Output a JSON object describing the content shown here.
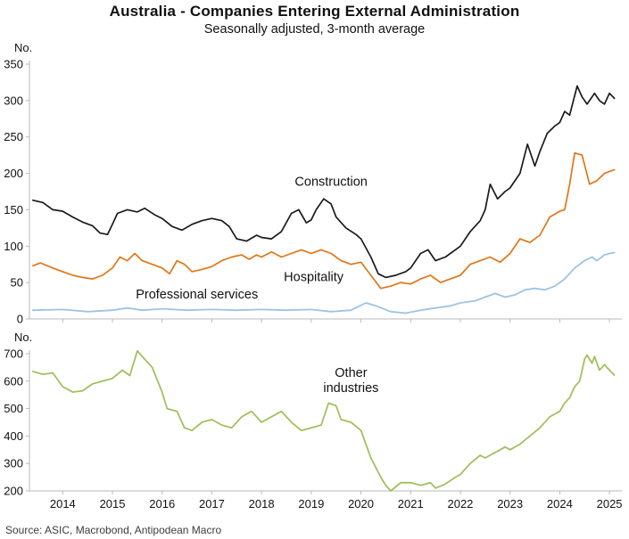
{
  "title": "Australia - Companies Entering External Administration",
  "subtitle": "Seasonally adjusted, 3-month average",
  "source": "Source: ASIC, Macrobond, Antipodean Macro",
  "chart_data": {
    "type": "line",
    "title": "Australia - Companies Entering External Administration",
    "subtitle": "Seasonally adjusted, 3-month average",
    "x_range": [
      2013.33,
      2025.25
    ],
    "x_ticks": [
      2014,
      2015,
      2016,
      2017,
      2018,
      2019,
      2020,
      2021,
      2022,
      2023,
      2024,
      2025
    ],
    "panels": [
      {
        "name": "top",
        "unit_label": "No.",
        "ylim": [
          0,
          350
        ],
        "yticks": [
          0,
          50,
          100,
          150,
          200,
          250,
          300,
          350
        ],
        "show_xlabels": false,
        "series": [
          "construction",
          "hospitality",
          "professional_services"
        ],
        "annotations": [
          {
            "lines": [
              "Construction"
            ],
            "x": 2019.4,
            "y": 183,
            "color": "#1a1a1a"
          },
          {
            "lines": [
              "Hospitality"
            ],
            "x": 2019.05,
            "y": 52,
            "color": "#e07617"
          },
          {
            "lines": [
              "Professional services"
            ],
            "x": 2016.7,
            "y": 28,
            "color": "#9dc3e6"
          }
        ]
      },
      {
        "name": "bottom",
        "unit_label": "No.",
        "ylim": [
          200,
          700
        ],
        "yticks": [
          200,
          300,
          400,
          500,
          600,
          700
        ],
        "show_xlabels": true,
        "series": [
          "other_industries"
        ],
        "annotations": [
          {
            "lines": [
              "Other",
              "industries"
            ],
            "x": 2019.8,
            "y": 615,
            "color": "#a3bf5f"
          }
        ]
      }
    ],
    "series": {
      "construction": {
        "label": "Construction",
        "color": "#1a1a1a",
        "width": 1.7,
        "points": [
          [
            2013.4,
            163
          ],
          [
            2013.6,
            160
          ],
          [
            2013.8,
            150
          ],
          [
            2014.0,
            148
          ],
          [
            2014.2,
            140
          ],
          [
            2014.4,
            133
          ],
          [
            2014.6,
            128
          ],
          [
            2014.75,
            118
          ],
          [
            2014.9,
            116
          ],
          [
            2015.0,
            130
          ],
          [
            2015.1,
            145
          ],
          [
            2015.3,
            150
          ],
          [
            2015.5,
            147
          ],
          [
            2015.65,
            152
          ],
          [
            2015.85,
            143
          ],
          [
            2016.0,
            138
          ],
          [
            2016.2,
            127
          ],
          [
            2016.4,
            122
          ],
          [
            2016.6,
            130
          ],
          [
            2016.8,
            135
          ],
          [
            2017.0,
            138
          ],
          [
            2017.2,
            135
          ],
          [
            2017.35,
            127
          ],
          [
            2017.5,
            110
          ],
          [
            2017.7,
            107
          ],
          [
            2017.9,
            115
          ],
          [
            2018.0,
            112
          ],
          [
            2018.2,
            110
          ],
          [
            2018.4,
            120
          ],
          [
            2018.6,
            145
          ],
          [
            2018.75,
            150
          ],
          [
            2018.9,
            132
          ],
          [
            2019.0,
            136
          ],
          [
            2019.1,
            150
          ],
          [
            2019.25,
            165
          ],
          [
            2019.4,
            158
          ],
          [
            2019.5,
            140
          ],
          [
            2019.7,
            125
          ],
          [
            2019.9,
            116
          ],
          [
            2020.0,
            110
          ],
          [
            2020.2,
            85
          ],
          [
            2020.35,
            62
          ],
          [
            2020.5,
            57
          ],
          [
            2020.7,
            60
          ],
          [
            2020.9,
            65
          ],
          [
            2021.0,
            70
          ],
          [
            2021.2,
            90
          ],
          [
            2021.35,
            95
          ],
          [
            2021.5,
            80
          ],
          [
            2021.7,
            85
          ],
          [
            2021.9,
            95
          ],
          [
            2022.0,
            100
          ],
          [
            2022.2,
            120
          ],
          [
            2022.4,
            135
          ],
          [
            2022.5,
            150
          ],
          [
            2022.6,
            185
          ],
          [
            2022.75,
            165
          ],
          [
            2022.9,
            175
          ],
          [
            2023.0,
            180
          ],
          [
            2023.2,
            200
          ],
          [
            2023.35,
            240
          ],
          [
            2023.5,
            210
          ],
          [
            2023.6,
            230
          ],
          [
            2023.75,
            255
          ],
          [
            2023.9,
            265
          ],
          [
            2024.0,
            270
          ],
          [
            2024.1,
            285
          ],
          [
            2024.2,
            280
          ],
          [
            2024.35,
            320
          ],
          [
            2024.45,
            305
          ],
          [
            2024.55,
            295
          ],
          [
            2024.7,
            310
          ],
          [
            2024.8,
            300
          ],
          [
            2024.9,
            295
          ],
          [
            2025.0,
            310
          ],
          [
            2025.1,
            303
          ]
        ]
      },
      "hospitality": {
        "label": "Hospitality",
        "color": "#e07617",
        "width": 1.7,
        "points": [
          [
            2013.4,
            73
          ],
          [
            2013.55,
            77
          ],
          [
            2013.8,
            70
          ],
          [
            2014.0,
            65
          ],
          [
            2014.2,
            60
          ],
          [
            2014.4,
            57
          ],
          [
            2014.6,
            55
          ],
          [
            2014.8,
            60
          ],
          [
            2015.0,
            70
          ],
          [
            2015.15,
            85
          ],
          [
            2015.3,
            80
          ],
          [
            2015.45,
            90
          ],
          [
            2015.6,
            80
          ],
          [
            2015.8,
            75
          ],
          [
            2016.0,
            70
          ],
          [
            2016.15,
            62
          ],
          [
            2016.3,
            80
          ],
          [
            2016.45,
            75
          ],
          [
            2016.6,
            65
          ],
          [
            2016.8,
            68
          ],
          [
            2017.0,
            72
          ],
          [
            2017.2,
            80
          ],
          [
            2017.4,
            85
          ],
          [
            2017.6,
            88
          ],
          [
            2017.75,
            82
          ],
          [
            2017.9,
            88
          ],
          [
            2018.0,
            85
          ],
          [
            2018.2,
            92
          ],
          [
            2018.4,
            85
          ],
          [
            2018.6,
            90
          ],
          [
            2018.8,
            95
          ],
          [
            2019.0,
            90
          ],
          [
            2019.2,
            95
          ],
          [
            2019.4,
            90
          ],
          [
            2019.6,
            80
          ],
          [
            2019.8,
            75
          ],
          [
            2020.0,
            78
          ],
          [
            2020.2,
            60
          ],
          [
            2020.4,
            42
          ],
          [
            2020.6,
            45
          ],
          [
            2020.8,
            50
          ],
          [
            2021.0,
            48
          ],
          [
            2021.2,
            55
          ],
          [
            2021.4,
            60
          ],
          [
            2021.6,
            50
          ],
          [
            2021.8,
            55
          ],
          [
            2022.0,
            60
          ],
          [
            2022.2,
            75
          ],
          [
            2022.4,
            80
          ],
          [
            2022.6,
            85
          ],
          [
            2022.8,
            78
          ],
          [
            2023.0,
            90
          ],
          [
            2023.2,
            110
          ],
          [
            2023.4,
            105
          ],
          [
            2023.6,
            115
          ],
          [
            2023.8,
            140
          ],
          [
            2024.0,
            148
          ],
          [
            2024.1,
            150
          ],
          [
            2024.2,
            185
          ],
          [
            2024.3,
            228
          ],
          [
            2024.45,
            225
          ],
          [
            2024.6,
            185
          ],
          [
            2024.75,
            190
          ],
          [
            2024.9,
            200
          ],
          [
            2025.1,
            205
          ]
        ]
      },
      "professional_services": {
        "label": "Professional services",
        "color": "#9dc3e6",
        "width": 1.8,
        "points": [
          [
            2013.4,
            12
          ],
          [
            2014.0,
            13
          ],
          [
            2014.5,
            10
          ],
          [
            2015.0,
            12
          ],
          [
            2015.3,
            15
          ],
          [
            2015.6,
            12
          ],
          [
            2016.0,
            14
          ],
          [
            2016.5,
            12
          ],
          [
            2017.0,
            13
          ],
          [
            2017.5,
            12
          ],
          [
            2018.0,
            13
          ],
          [
            2018.5,
            12
          ],
          [
            2019.0,
            13
          ],
          [
            2019.4,
            10
          ],
          [
            2019.8,
            12
          ],
          [
            2020.1,
            22
          ],
          [
            2020.3,
            18
          ],
          [
            2020.6,
            10
          ],
          [
            2020.9,
            8
          ],
          [
            2021.2,
            12
          ],
          [
            2021.5,
            15
          ],
          [
            2021.8,
            18
          ],
          [
            2022.0,
            22
          ],
          [
            2022.3,
            25
          ],
          [
            2022.5,
            30
          ],
          [
            2022.7,
            35
          ],
          [
            2022.9,
            30
          ],
          [
            2023.1,
            33
          ],
          [
            2023.3,
            40
          ],
          [
            2023.5,
            42
          ],
          [
            2023.7,
            40
          ],
          [
            2023.9,
            45
          ],
          [
            2024.1,
            55
          ],
          [
            2024.3,
            70
          ],
          [
            2024.5,
            80
          ],
          [
            2024.65,
            85
          ],
          [
            2024.75,
            80
          ],
          [
            2024.9,
            88
          ],
          [
            2025.0,
            90
          ],
          [
            2025.1,
            91
          ]
        ]
      },
      "other_industries": {
        "label": "Other industries",
        "color": "#a3bf5f",
        "width": 1.8,
        "points": [
          [
            2013.4,
            635
          ],
          [
            2013.6,
            625
          ],
          [
            2013.8,
            630
          ],
          [
            2014.0,
            580
          ],
          [
            2014.2,
            560
          ],
          [
            2014.4,
            565
          ],
          [
            2014.6,
            590
          ],
          [
            2014.8,
            600
          ],
          [
            2015.0,
            610
          ],
          [
            2015.2,
            640
          ],
          [
            2015.35,
            620
          ],
          [
            2015.5,
            710
          ],
          [
            2015.65,
            680
          ],
          [
            2015.8,
            650
          ],
          [
            2016.0,
            560
          ],
          [
            2016.1,
            500
          ],
          [
            2016.3,
            490
          ],
          [
            2016.45,
            430
          ],
          [
            2016.6,
            420
          ],
          [
            2016.8,
            450
          ],
          [
            2017.0,
            460
          ],
          [
            2017.2,
            440
          ],
          [
            2017.4,
            430
          ],
          [
            2017.6,
            470
          ],
          [
            2017.8,
            490
          ],
          [
            2018.0,
            450
          ],
          [
            2018.2,
            470
          ],
          [
            2018.4,
            490
          ],
          [
            2018.6,
            450
          ],
          [
            2018.8,
            420
          ],
          [
            2019.0,
            430
          ],
          [
            2019.2,
            440
          ],
          [
            2019.35,
            520
          ],
          [
            2019.5,
            510
          ],
          [
            2019.6,
            460
          ],
          [
            2019.8,
            450
          ],
          [
            2020.0,
            420
          ],
          [
            2020.2,
            320
          ],
          [
            2020.4,
            250
          ],
          [
            2020.5,
            220
          ],
          [
            2020.6,
            200
          ],
          [
            2020.8,
            230
          ],
          [
            2021.0,
            230
          ],
          [
            2021.2,
            220
          ],
          [
            2021.4,
            230
          ],
          [
            2021.5,
            210
          ],
          [
            2021.7,
            225
          ],
          [
            2021.9,
            250
          ],
          [
            2022.0,
            260
          ],
          [
            2022.2,
            300
          ],
          [
            2022.4,
            330
          ],
          [
            2022.5,
            320
          ],
          [
            2022.7,
            340
          ],
          [
            2022.9,
            360
          ],
          [
            2023.0,
            350
          ],
          [
            2023.2,
            370
          ],
          [
            2023.4,
            400
          ],
          [
            2023.6,
            430
          ],
          [
            2023.8,
            470
          ],
          [
            2024.0,
            490
          ],
          [
            2024.1,
            520
          ],
          [
            2024.2,
            540
          ],
          [
            2024.3,
            580
          ],
          [
            2024.4,
            600
          ],
          [
            2024.5,
            680
          ],
          [
            2024.55,
            695
          ],
          [
            2024.65,
            665
          ],
          [
            2024.7,
            690
          ],
          [
            2024.8,
            640
          ],
          [
            2024.9,
            660
          ],
          [
            2025.0,
            640
          ],
          [
            2025.1,
            622
          ]
        ]
      }
    }
  }
}
